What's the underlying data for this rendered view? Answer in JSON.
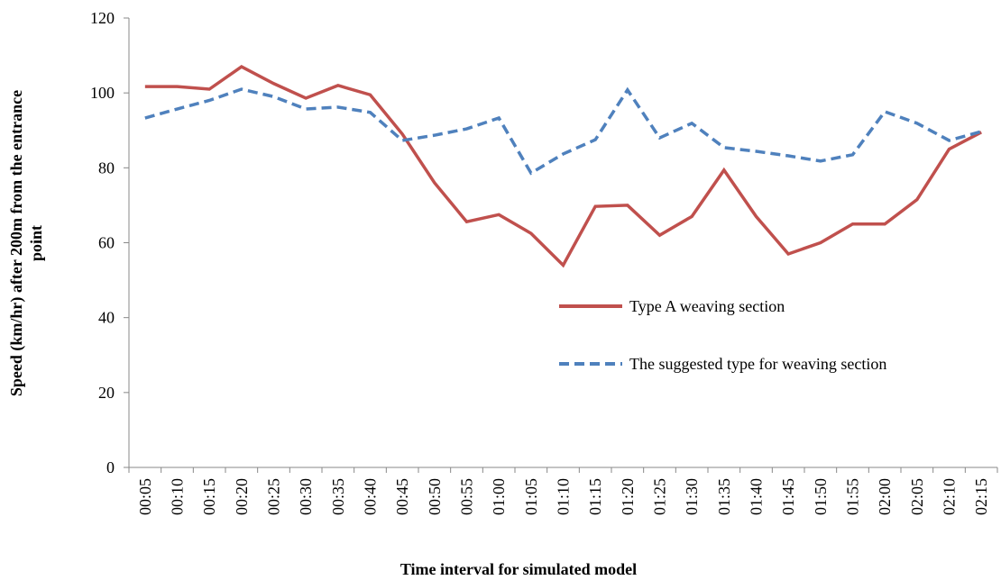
{
  "chart_data": {
    "type": "line",
    "x_label": "Time interval for simulated model",
    "y_label": [
      "Speed (km/hr)  after 200m from the entrance",
      "point"
    ],
    "categories": [
      "00:05",
      "00:10",
      "00:15",
      "00:20",
      "00:25",
      "00:30",
      "00:35",
      "00:40",
      "00:45",
      "00:50",
      "00:55",
      "01:00",
      "01:05",
      "01:10",
      "01:15",
      "01:20",
      "01:25",
      "01:30",
      "01:35",
      "01:40",
      "01:45",
      "01:50",
      "01:55",
      "02:00",
      "02:05",
      "02:10",
      "02:15"
    ],
    "series": [
      {
        "name": "Type A weaving section",
        "color": "#c0504d",
        "dash": false,
        "values": [
          101.7,
          101.7,
          101,
          107,
          102.5,
          98.6,
          102,
          99.5,
          89,
          76,
          65.6,
          67.5,
          62.5,
          54,
          69.7,
          70,
          62,
          67,
          79.4,
          67,
          57,
          60,
          65,
          65,
          71.5,
          85,
          89.5
        ]
      },
      {
        "name": "The suggested type for weaving section",
        "color": "#4f81bd",
        "dash": true,
        "values": [
          93.3,
          95.7,
          98,
          101,
          99,
          95.7,
          96.2,
          94.8,
          87.3,
          88.7,
          90.4,
          93.3,
          78.6,
          83.7,
          87.5,
          100.8,
          88,
          91.9,
          85.4,
          84.4,
          83.2,
          81.8,
          83.5,
          95,
          91.9,
          87.3,
          89.7
        ]
      }
    ],
    "ylim": [
      0,
      120
    ],
    "yticks": [
      0,
      20,
      40,
      60,
      80,
      100,
      120
    ],
    "grid": false,
    "legend": "right"
  }
}
